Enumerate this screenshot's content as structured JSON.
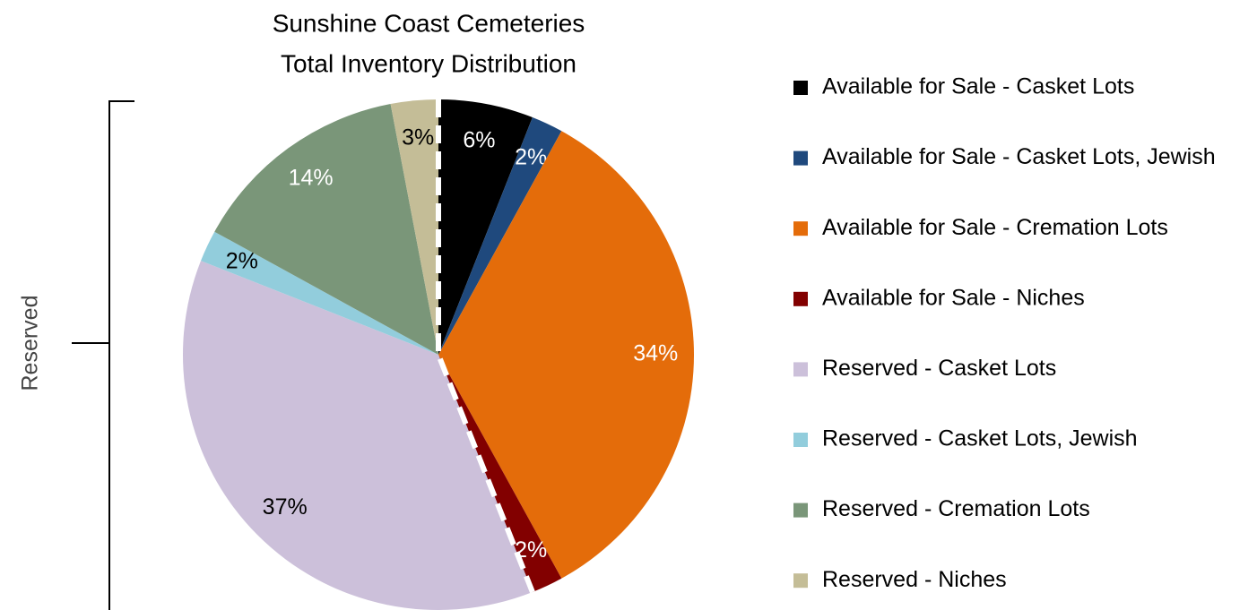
{
  "chart_data": {
    "type": "pie",
    "title": "Sunshine Coast Cemeteries",
    "subtitle": "Total Inventory Distribution",
    "categories": [
      "Available for Sale - Casket Lots",
      "Available for Sale - Casket Lots, Jewish",
      "Available for Sale - Cremation Lots",
      "Available for Sale - Niches",
      "Reserved - Casket Lots",
      "Reserved - Casket Lots, Jewish",
      "Reserved - Cremation Lots",
      "Reserved - Niches"
    ],
    "values": [
      6,
      2,
      34,
      2,
      37,
      2,
      14,
      3
    ],
    "value_labels": [
      "6%",
      "2%",
      "34%",
      "2%",
      "37%",
      "2%",
      "14%",
      "3%"
    ],
    "colors": [
      "#000000",
      "#1f497d",
      "#e46c0a",
      "#820000",
      "#ccc0da",
      "#92cddc",
      "#7a9679",
      "#c4bd97"
    ],
    "annotation": "Reserved",
    "legend": "right"
  }
}
